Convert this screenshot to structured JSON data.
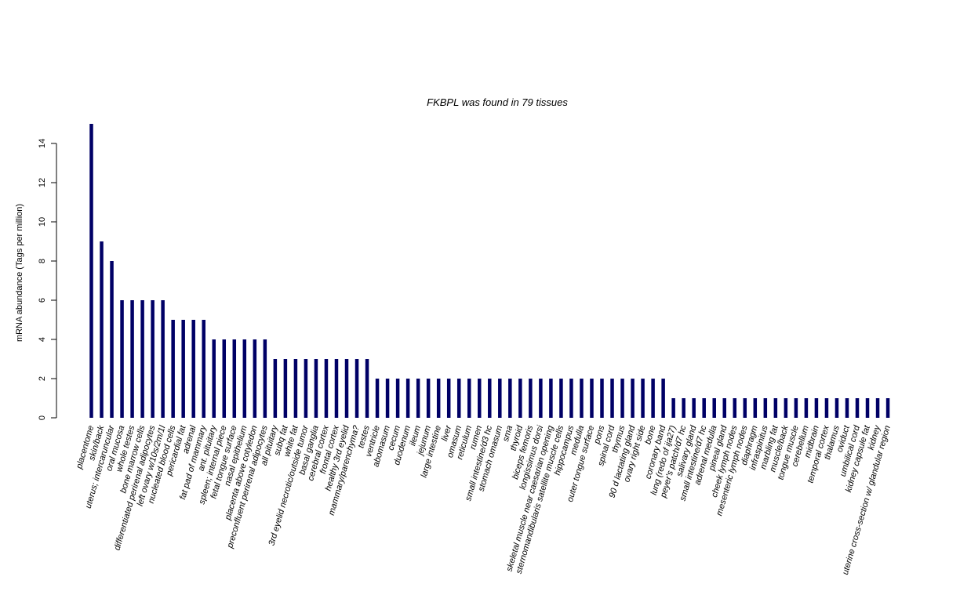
{
  "chart_data": {
    "type": "bar",
    "title": "FKBPL  was found in  79  tissues",
    "xlabel": "",
    "ylabel": "mRNA abundance (Tags per million)",
    "ylim": [
      0,
      15
    ],
    "yticks": [
      0,
      2,
      4,
      6,
      8,
      10,
      12,
      14
    ],
    "bar_color": "#000066",
    "grid": false,
    "categories": [
      "placentome",
      "skin/back",
      "uterus; intercaruncular",
      "oral mucosa",
      "whole testes",
      "bone marrow cells",
      "differentiated perirenal adipocytes",
      "left ovary w/10s/2m/1l",
      "nucleated blood cells",
      "pericardial fat",
      "adrenal",
      "fat pad of mammary",
      "ant. pituitary",
      "spleen; internal piece",
      "fetal tongue surface",
      "nasal epithelium",
      "placenta above cotyledon",
      "preconfluent perirenal adipocytes",
      "all pituitary",
      "subq fat",
      "white fat",
      "3rd eyelid necrotic/outside tumor",
      "basal ganglia",
      "cerebral cortex",
      "frontal cortex",
      "healthy 3rd eyelid",
      "mammary/parenchyma?",
      "testes",
      "ventricle",
      "abomasum",
      "cecum",
      "duodenum",
      "ileum",
      "jejunum",
      "large intestine",
      "liver",
      "omasum",
      "reticulum",
      "rumen",
      "small intestine/d3 hc",
      "stomach omasum",
      "sma",
      "thyroid",
      "biceps femoris",
      "longissimus dorsi",
      "skeletal muscle near caesarian opening",
      "sternomandibularis satellite muscle cells",
      "hippocampus",
      "medulla",
      "outer tongue surface",
      "pons",
      "spinal cord",
      "thymus",
      "90 d lactating gland",
      "ovary right side",
      "bone",
      "coronary band",
      "lung (redo of ija27)",
      "peyer's patch/d7 hc",
      "salivary gland",
      "small intestine/d7 hc",
      "adrenal medulla",
      "pineal gland",
      "cheek lymph nodes",
      "mesenteric lymph nodes",
      "diaphragm",
      "infraspinitus",
      "marbling fat",
      "muscle/back",
      "tongue muscle",
      "cerebellum",
      "midbrain",
      "temporal cortex",
      "thalamus",
      "oviduct",
      "umbilical cord",
      "kidney capsule fat",
      "kidney",
      "uterine cross-section w/ glandular region"
    ],
    "values": [
      15,
      9,
      8,
      6,
      6,
      6,
      6,
      6,
      5,
      5,
      5,
      5,
      4,
      4,
      4,
      4,
      4,
      4,
      3,
      3,
      3,
      3,
      3,
      3,
      3,
      3,
      3,
      3,
      2,
      2,
      2,
      2,
      2,
      2,
      2,
      2,
      2,
      2,
      2,
      2,
      2,
      2,
      2,
      2,
      2,
      2,
      2,
      2,
      2,
      2,
      2,
      2,
      2,
      2,
      2,
      2,
      2,
      1,
      1,
      1,
      1,
      1,
      1,
      1,
      1,
      1,
      1,
      1,
      1,
      1,
      1,
      1,
      1,
      1,
      1,
      1,
      1,
      1,
      1
    ]
  }
}
